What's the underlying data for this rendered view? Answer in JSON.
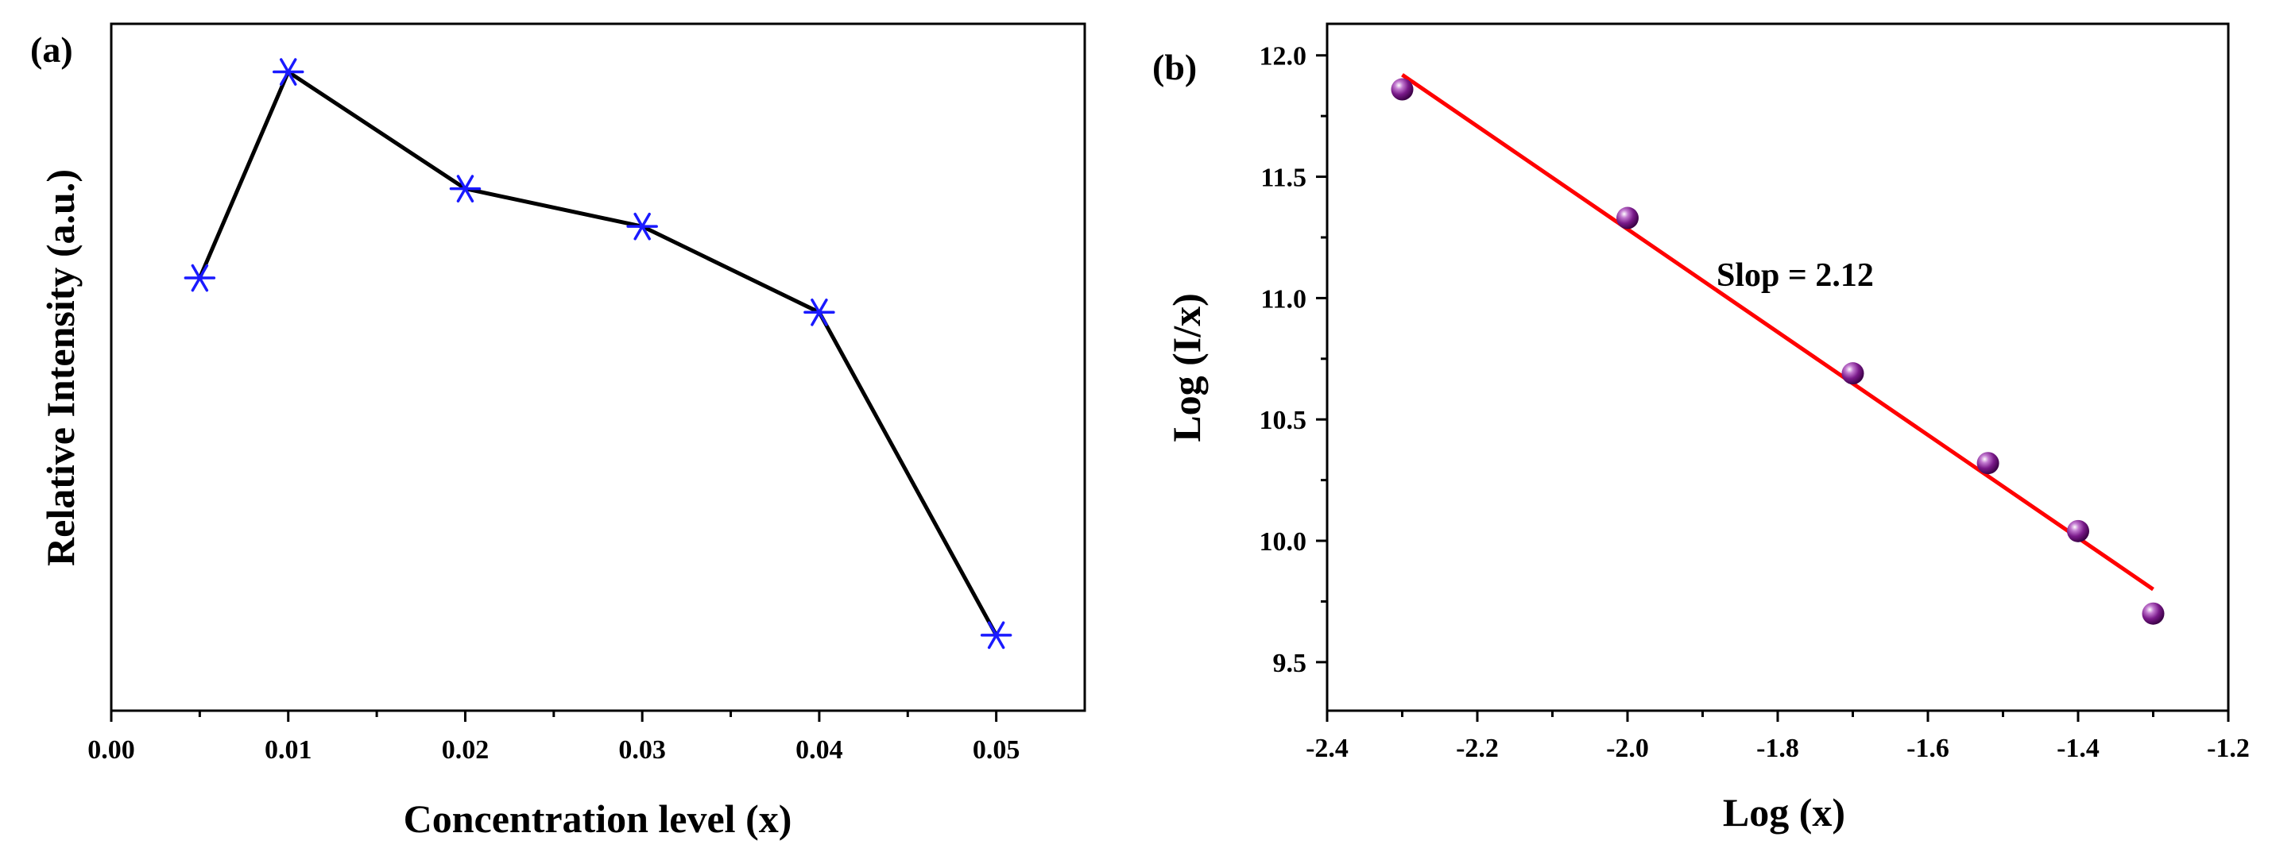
{
  "chart_data": [
    {
      "panel": "(a)",
      "type": "line",
      "xlabel": "Concentration level (x)",
      "ylabel": "Relative Intensity (a.u.)",
      "xlim": [
        0.0,
        0.055
      ],
      "ylim": [
        0,
        100
      ],
      "xticks": [
        0.0,
        0.01,
        0.02,
        0.03,
        0.04,
        0.05
      ],
      "xtick_labels": [
        "0.00",
        "0.01",
        "0.02",
        "0.03",
        "0.04",
        "0.05"
      ],
      "yticks_shown": false,
      "marker": "asterisk",
      "line_color": "#000000",
      "marker_color": "#1a1aff",
      "x": [
        0.005,
        0.01,
        0.02,
        0.03,
        0.04,
        0.05
      ],
      "y": [
        63,
        93,
        76,
        70.5,
        58,
        11
      ]
    },
    {
      "panel": "(b)",
      "type": "scatter",
      "xlabel": "Log (x)",
      "ylabel": "Log (I/x)",
      "xlim": [
        -2.4,
        -1.2
      ],
      "ylim": [
        9.3,
        12.13
      ],
      "xticks": [
        -2.4,
        -2.2,
        -2.0,
        -1.8,
        -1.6,
        -1.4,
        -1.2
      ],
      "xtick_labels": [
        "-2.4",
        "-2.2",
        "-2.0",
        "-1.8",
        "-1.6",
        "-1.4",
        "-1.2"
      ],
      "yticks": [
        9.5,
        10.0,
        10.5,
        11.0,
        11.5,
        12.0
      ],
      "ytick_labels": [
        "9.5",
        "10.0",
        "10.5",
        "11.0",
        "11.5",
        "12.0"
      ],
      "marker_color": "#7a1a8a",
      "fit_color": "#ff0000",
      "x": [
        -2.3,
        -2.0,
        -1.7,
        -1.52,
        -1.4,
        -1.3
      ],
      "y": [
        11.86,
        11.33,
        10.69,
        10.32,
        10.04,
        9.7
      ],
      "fit": {
        "x": [
          -2.3,
          -1.3
        ],
        "y": [
          11.92,
          9.8
        ]
      },
      "annotation": "Slop = 2.12"
    }
  ]
}
